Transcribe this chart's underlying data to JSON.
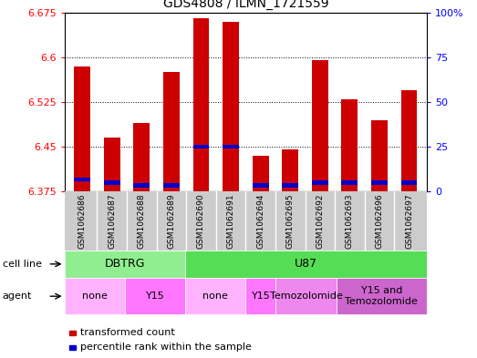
{
  "title": "GDS4808 / ILMN_1721559",
  "samples": [
    "GSM1062686",
    "GSM1062687",
    "GSM1062688",
    "GSM1062689",
    "GSM1062690",
    "GSM1062691",
    "GSM1062694",
    "GSM1062695",
    "GSM1062692",
    "GSM1062693",
    "GSM1062696",
    "GSM1062697"
  ],
  "red_values": [
    6.585,
    6.465,
    6.49,
    6.575,
    6.665,
    6.66,
    6.435,
    6.445,
    6.595,
    6.53,
    6.495,
    6.545
  ],
  "blue_values": [
    6.395,
    6.39,
    6.385,
    6.385,
    6.45,
    6.45,
    6.385,
    6.385,
    6.39,
    6.39,
    6.39,
    6.39
  ],
  "ymin": 6.375,
  "ymax": 6.675,
  "yticks": [
    6.375,
    6.45,
    6.525,
    6.6,
    6.675
  ],
  "ytick_labels": [
    "6.375",
    "6.45",
    "6.525",
    "6.6",
    "6.675"
  ],
  "y2ticks_pct": [
    0,
    25,
    50,
    75,
    100
  ],
  "y2tick_labels": [
    "0",
    "25",
    "50",
    "75",
    "100%"
  ],
  "cell_line_groups": [
    {
      "label": "DBTRG",
      "start": 0,
      "end": 4,
      "color": "#90EE90"
    },
    {
      "label": "U87",
      "start": 4,
      "end": 12,
      "color": "#55DD55"
    }
  ],
  "agent_groups": [
    {
      "label": "none",
      "start": 0,
      "end": 2,
      "color": "#FFB3FF"
    },
    {
      "label": "Y15",
      "start": 2,
      "end": 4,
      "color": "#FF77FF"
    },
    {
      "label": "none",
      "start": 4,
      "end": 6,
      "color": "#FFB3FF"
    },
    {
      "label": "Y15",
      "start": 6,
      "end": 7,
      "color": "#FF77FF"
    },
    {
      "label": "Temozolomide",
      "start": 7,
      "end": 9,
      "color": "#EE88EE"
    },
    {
      "label": "Y15 and\nTemozolomide",
      "start": 9,
      "end": 12,
      "color": "#CC66CC"
    }
  ],
  "bar_color": "#CC0000",
  "blue_color": "#0000CC",
  "sample_bg_color": "#CCCCCC",
  "legend_red": "transformed count",
  "legend_blue": "percentile rank within the sample",
  "cell_line_label": "cell line",
  "agent_label": "agent"
}
